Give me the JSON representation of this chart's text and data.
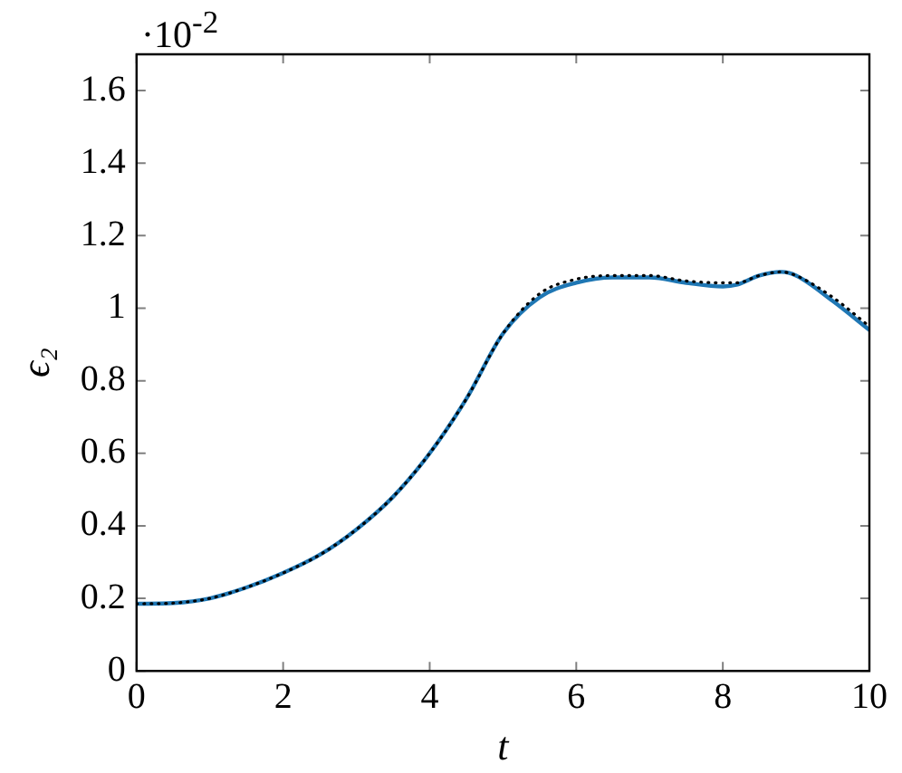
{
  "chart_data": {
    "type": "line",
    "xlabel": "t",
    "ylabel": "ϵ₂",
    "annotations": [
      "·10$^{-2}$"
    ],
    "xlim": [
      0,
      10
    ],
    "xticks": [
      0,
      2,
      4,
      6,
      8,
      10
    ],
    "ylim": [
      0,
      1.7
    ],
    "yticks": [
      0,
      0.2,
      0.4,
      0.6,
      0.8,
      1,
      1.2,
      1.4,
      1.6
    ],
    "grid": false,
    "legend": false,
    "marker": "none",
    "series": [
      {
        "color": "#000000",
        "line_style": "dotted",
        "x": [
          0,
          0.5,
          1,
          1.5,
          2,
          2.5,
          3,
          3.5,
          4,
          4.5,
          5,
          5.5,
          6,
          6.5,
          7,
          7.5,
          8,
          8.2,
          8.5,
          8.8,
          9,
          9.5,
          10
        ],
        "values": [
          0.185,
          0.187,
          0.2,
          0.23,
          0.27,
          0.32,
          0.39,
          0.48,
          0.6,
          0.75,
          0.93,
          1.04,
          1.08,
          1.09,
          1.09,
          1.075,
          1.07,
          1.07,
          1.09,
          1.1,
          1.09,
          1.03,
          0.95
        ]
      },
      {
        "color": "#1f77b4",
        "line_style": "solid",
        "x": [
          0,
          0.5,
          1,
          1.5,
          2,
          2.5,
          3,
          3.5,
          4,
          4.5,
          5,
          5.5,
          6,
          6.5,
          7,
          7.5,
          8,
          8.2,
          8.5,
          8.8,
          9,
          9.5,
          10
        ],
        "values": [
          0.185,
          0.187,
          0.2,
          0.23,
          0.27,
          0.32,
          0.39,
          0.48,
          0.6,
          0.75,
          0.93,
          1.03,
          1.07,
          1.085,
          1.085,
          1.07,
          1.06,
          1.065,
          1.09,
          1.1,
          1.09,
          1.02,
          0.94
        ]
      }
    ]
  }
}
